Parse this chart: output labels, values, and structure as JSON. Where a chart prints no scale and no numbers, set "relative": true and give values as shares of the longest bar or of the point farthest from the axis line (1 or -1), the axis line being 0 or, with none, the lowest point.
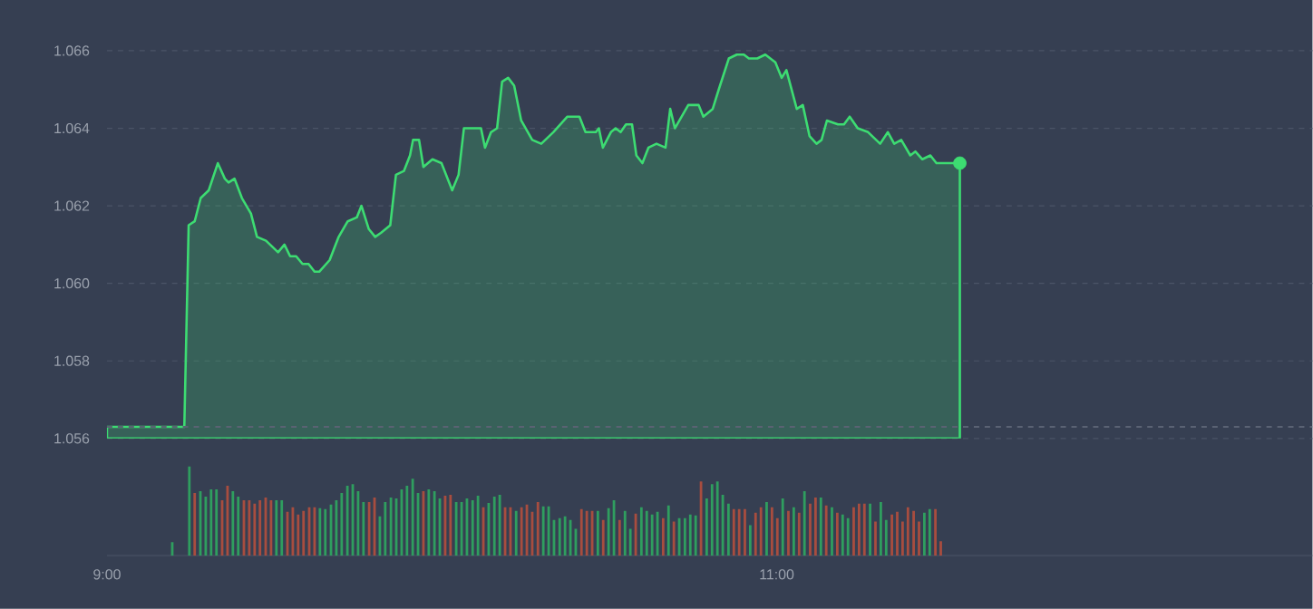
{
  "chart_data": [
    {
      "type": "area",
      "xlim": [
        9,
        12.6
      ],
      "tick_labels": "y",
      "ylim": [
        1.056,
        1.066
      ],
      "yticks": [
        {
          "value": 1.056,
          "label": "1.056"
        },
        {
          "value": 1.058,
          "label": "1.058"
        },
        {
          "value": 1.06,
          "label": "1.060"
        },
        {
          "value": 1.062,
          "label": "1.062"
        },
        {
          "value": 1.064,
          "label": "1.064"
        },
        {
          "value": 1.066,
          "label": "1.066"
        }
      ],
      "grid": "y",
      "marker": "none",
      "line_style": "solid",
      "ref_lines": [
        {
          "axis": "y",
          "value": 1.0563,
          "line_style": "dashed",
          "color": "#5a6273"
        }
      ],
      "series": [
        {
          "type": "area",
          "color": "#3ddc72",
          "x": [
            9.0,
            9.231,
            9.244,
            9.262,
            9.28,
            9.304,
            9.331,
            9.352,
            9.363,
            9.381,
            9.403,
            9.43,
            9.448,
            9.475,
            9.511,
            9.53,
            9.547,
            9.565,
            9.584,
            9.602,
            9.62,
            9.634,
            9.665,
            9.692,
            9.719,
            9.746,
            9.76,
            9.782,
            9.801,
            9.818,
            9.846,
            9.863,
            9.887,
            9.905,
            9.914,
            9.932,
            9.945,
            9.972,
            9.999,
            10.031,
            10.05,
            10.066,
            10.117,
            10.129,
            10.147,
            10.165,
            10.18,
            10.198,
            10.216,
            10.237,
            10.27,
            10.297,
            10.333,
            10.375,
            10.411,
            10.429,
            10.46,
            10.469,
            10.481,
            10.505,
            10.519,
            10.534,
            10.55,
            10.568,
            10.581,
            10.599,
            10.617,
            10.641,
            10.668,
            10.682,
            10.696,
            10.736,
            10.749,
            10.767,
            10.781,
            10.809,
            10.827,
            10.857,
            10.881,
            10.902,
            10.917,
            10.942,
            10.966,
            10.996,
            11.015,
            11.029,
            11.06,
            11.078,
            11.098,
            11.119,
            11.134,
            11.15,
            11.183,
            11.201,
            11.218,
            11.242,
            11.273,
            11.309,
            11.332,
            11.351,
            11.372,
            11.399,
            11.414,
            11.435,
            11.459,
            11.477,
            11.547
          ],
          "values": [
            1.0563,
            1.0563,
            1.0615,
            1.0616,
            1.0622,
            1.0624,
            1.0631,
            1.0627,
            1.0626,
            1.0627,
            1.0622,
            1.0618,
            1.0612,
            1.0611,
            1.0608,
            1.061,
            1.0607,
            1.0607,
            1.0605,
            1.0605,
            1.0603,
            1.0603,
            1.0606,
            1.0612,
            1.0616,
            1.0617,
            1.062,
            1.0614,
            1.0612,
            1.0613,
            1.0615,
            1.0628,
            1.0629,
            1.0633,
            1.0637,
            1.0637,
            1.063,
            1.0632,
            1.0631,
            1.0624,
            1.0628,
            1.064,
            1.064,
            1.0635,
            1.0639,
            1.064,
            1.0652,
            1.0653,
            1.0651,
            1.0642,
            1.0637,
            1.0636,
            1.0639,
            1.0643,
            1.0643,
            1.0639,
            1.0639,
            1.064,
            1.0635,
            1.0639,
            1.064,
            1.0639,
            1.0641,
            1.0641,
            1.0633,
            1.0631,
            1.0635,
            1.0636,
            1.0635,
            1.0645,
            1.064,
            1.0646,
            1.0646,
            1.0646,
            1.0643,
            1.0645,
            1.065,
            1.0658,
            1.0659,
            1.0659,
            1.0658,
            1.0658,
            1.0659,
            1.0657,
            1.0653,
            1.0655,
            1.0645,
            1.0646,
            1.0638,
            1.0636,
            1.0637,
            1.0642,
            1.0641,
            1.0641,
            1.0643,
            1.064,
            1.0639,
            1.0636,
            1.0639,
            1.0636,
            1.0637,
            1.0633,
            1.0634,
            1.0632,
            1.0633,
            1.0631,
            1.0631
          ]
        },
        {
          "type": "scatter",
          "marker": "circle",
          "color": "#3ddc72",
          "x": [
            11.547
          ],
          "values": [
            1.0631
          ]
        }
      ]
    },
    {
      "type": "bar",
      "relative": true,
      "xlim": [
        9,
        12.6
      ],
      "xticks": [
        {
          "value": 9,
          "label": "9:00"
        },
        {
          "value": 11,
          "label": "11:00"
        }
      ],
      "series": [
        {
          "color": "#2f9e5f",
          "x": [
            9.195,
            9.246,
            9.279,
            9.295,
            9.311,
            9.327,
            9.376,
            9.392,
            9.506,
            9.522,
            9.636,
            9.652,
            9.669,
            9.685,
            9.701,
            9.718,
            9.734,
            9.75,
            9.766,
            9.815,
            9.831,
            9.848,
            9.864,
            9.88,
            9.896,
            9.913,
            9.929,
            9.961,
            9.978,
            9.994,
            10.043,
            10.059,
            10.075,
            10.092,
            10.108,
            10.14,
            10.157,
            10.173,
            10.222,
            10.303,
            10.319,
            10.335,
            10.352,
            10.368,
            10.384,
            10.4,
            10.466,
            10.498,
            10.514,
            10.547,
            10.563,
            10.596,
            10.612,
            10.628,
            10.644,
            10.677,
            10.709,
            10.726,
            10.742,
            10.758,
            10.791,
            10.807,
            10.823,
            10.839,
            10.856,
            10.921,
            10.97,
            11.018,
            11.051,
            11.083,
            11.132,
            11.165,
            11.197,
            11.213,
            11.279,
            11.311,
            11.327,
            11.441,
            11.457
          ],
          "values": [
            0.15,
            1.0,
            0.72,
            0.66,
            0.74,
            0.74,
            0.72,
            0.66,
            0.62,
            0.62,
            0.53,
            0.52,
            0.57,
            0.62,
            0.7,
            0.78,
            0.8,
            0.72,
            0.6,
            0.44,
            0.6,
            0.65,
            0.64,
            0.74,
            0.78,
            0.86,
            0.7,
            0.74,
            0.72,
            0.64,
            0.6,
            0.6,
            0.64,
            0.62,
            0.67,
            0.59,
            0.66,
            0.68,
            0.5,
            0.55,
            0.55,
            0.4,
            0.42,
            0.44,
            0.4,
            0.3,
            0.5,
            0.53,
            0.62,
            0.5,
            0.3,
            0.54,
            0.5,
            0.46,
            0.49,
            0.56,
            0.42,
            0.42,
            0.46,
            0.45,
            0.64,
            0.8,
            0.83,
            0.68,
            0.58,
            0.34,
            0.6,
            0.64,
            0.54,
            0.72,
            0.65,
            0.54,
            0.46,
            0.42,
            0.58,
            0.6,
            0.4,
            0.48,
            0.52
          ]
        },
        {
          "color": "#a84d3f",
          "x": [
            9.262,
            9.344,
            9.36,
            9.409,
            9.425,
            9.441,
            9.457,
            9.474,
            9.49,
            9.539,
            9.555,
            9.571,
            9.587,
            9.604,
            9.62,
            9.783,
            9.799,
            9.945,
            10.01,
            10.026,
            10.124,
            10.189,
            10.205,
            10.238,
            10.254,
            10.27,
            10.287,
            10.417,
            10.433,
            10.449,
            10.482,
            10.531,
            10.579,
            10.661,
            10.693,
            10.774,
            10.872,
            10.888,
            10.905,
            10.937,
            10.953,
            10.986,
            11.002,
            11.035,
            11.067,
            11.1,
            11.116,
            11.148,
            11.181,
            11.23,
            11.246,
            11.262,
            11.295,
            11.344,
            11.36,
            11.376,
            11.392,
            11.409,
            11.425,
            11.474,
            11.49
          ],
          "values": [
            0.7,
            0.62,
            0.78,
            0.62,
            0.62,
            0.58,
            0.62,
            0.65,
            0.62,
            0.49,
            0.54,
            0.46,
            0.5,
            0.54,
            0.54,
            0.6,
            0.65,
            0.72,
            0.67,
            0.68,
            0.54,
            0.54,
            0.54,
            0.54,
            0.57,
            0.49,
            0.6,
            0.52,
            0.5,
            0.5,
            0.4,
            0.4,
            0.47,
            0.42,
            0.38,
            0.83,
            0.52,
            0.52,
            0.52,
            0.48,
            0.54,
            0.54,
            0.42,
            0.5,
            0.48,
            0.58,
            0.65,
            0.56,
            0.48,
            0.54,
            0.58,
            0.58,
            0.38,
            0.46,
            0.49,
            0.38,
            0.54,
            0.5,
            0.38,
            0.52,
            0.16
          ]
        }
      ]
    }
  ]
}
